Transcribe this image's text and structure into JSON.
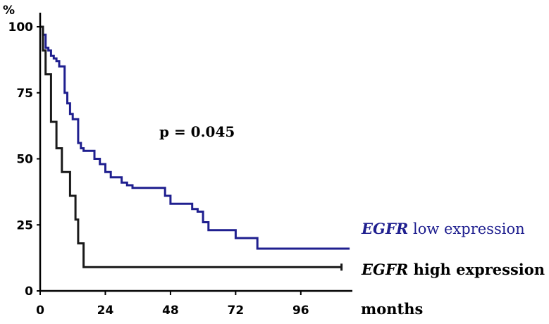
{
  "chart_data": {
    "type": "line",
    "title": "",
    "xlabel": "months",
    "ylabel": "%",
    "xlim": [
      0,
      115
    ],
    "ylim": [
      0,
      100
    ],
    "x_ticks": [
      0,
      24,
      48,
      72,
      96
    ],
    "y_ticks": [
      0,
      25,
      50,
      75,
      100
    ],
    "x_tick_labels": [
      "0",
      "24",
      "48",
      "72",
      "96"
    ],
    "y_tick_labels": [
      "0",
      "25",
      "50",
      "75",
      "100"
    ],
    "grid": false,
    "legend_position": "right",
    "annotation": "p = 0.045",
    "series": [
      {
        "name_italic": "EGFR",
        "name_rest": " low expression",
        "color": "#1f1f8f",
        "step_points": [
          [
            0,
            100
          ],
          [
            1,
            97
          ],
          [
            2,
            92
          ],
          [
            3,
            91
          ],
          [
            4,
            89
          ],
          [
            5,
            88
          ],
          [
            6,
            87
          ],
          [
            7,
            85
          ],
          [
            9,
            75
          ],
          [
            10,
            71
          ],
          [
            11,
            67
          ],
          [
            12,
            65
          ],
          [
            14,
            56
          ],
          [
            15,
            54
          ],
          [
            16,
            53
          ],
          [
            20,
            50
          ],
          [
            22,
            48
          ],
          [
            24,
            45
          ],
          [
            26,
            43
          ],
          [
            30,
            41
          ],
          [
            32,
            40
          ],
          [
            34,
            39
          ],
          [
            46,
            36
          ],
          [
            48,
            33
          ],
          [
            56,
            31
          ],
          [
            58,
            30
          ],
          [
            60,
            26
          ],
          [
            62,
            23
          ],
          [
            72,
            20
          ],
          [
            80,
            16
          ],
          [
            114,
            16
          ]
        ]
      },
      {
        "name_italic": "EGFR",
        "name_rest": " high expression",
        "color": "#1a1a1a",
        "step_points": [
          [
            0,
            100
          ],
          [
            1,
            91
          ],
          [
            2,
            82
          ],
          [
            4,
            64
          ],
          [
            6,
            54
          ],
          [
            8,
            45
          ],
          [
            11,
            36
          ],
          [
            13,
            27
          ],
          [
            14,
            18
          ],
          [
            16,
            9
          ],
          [
            111,
            9
          ]
        ]
      }
    ]
  }
}
